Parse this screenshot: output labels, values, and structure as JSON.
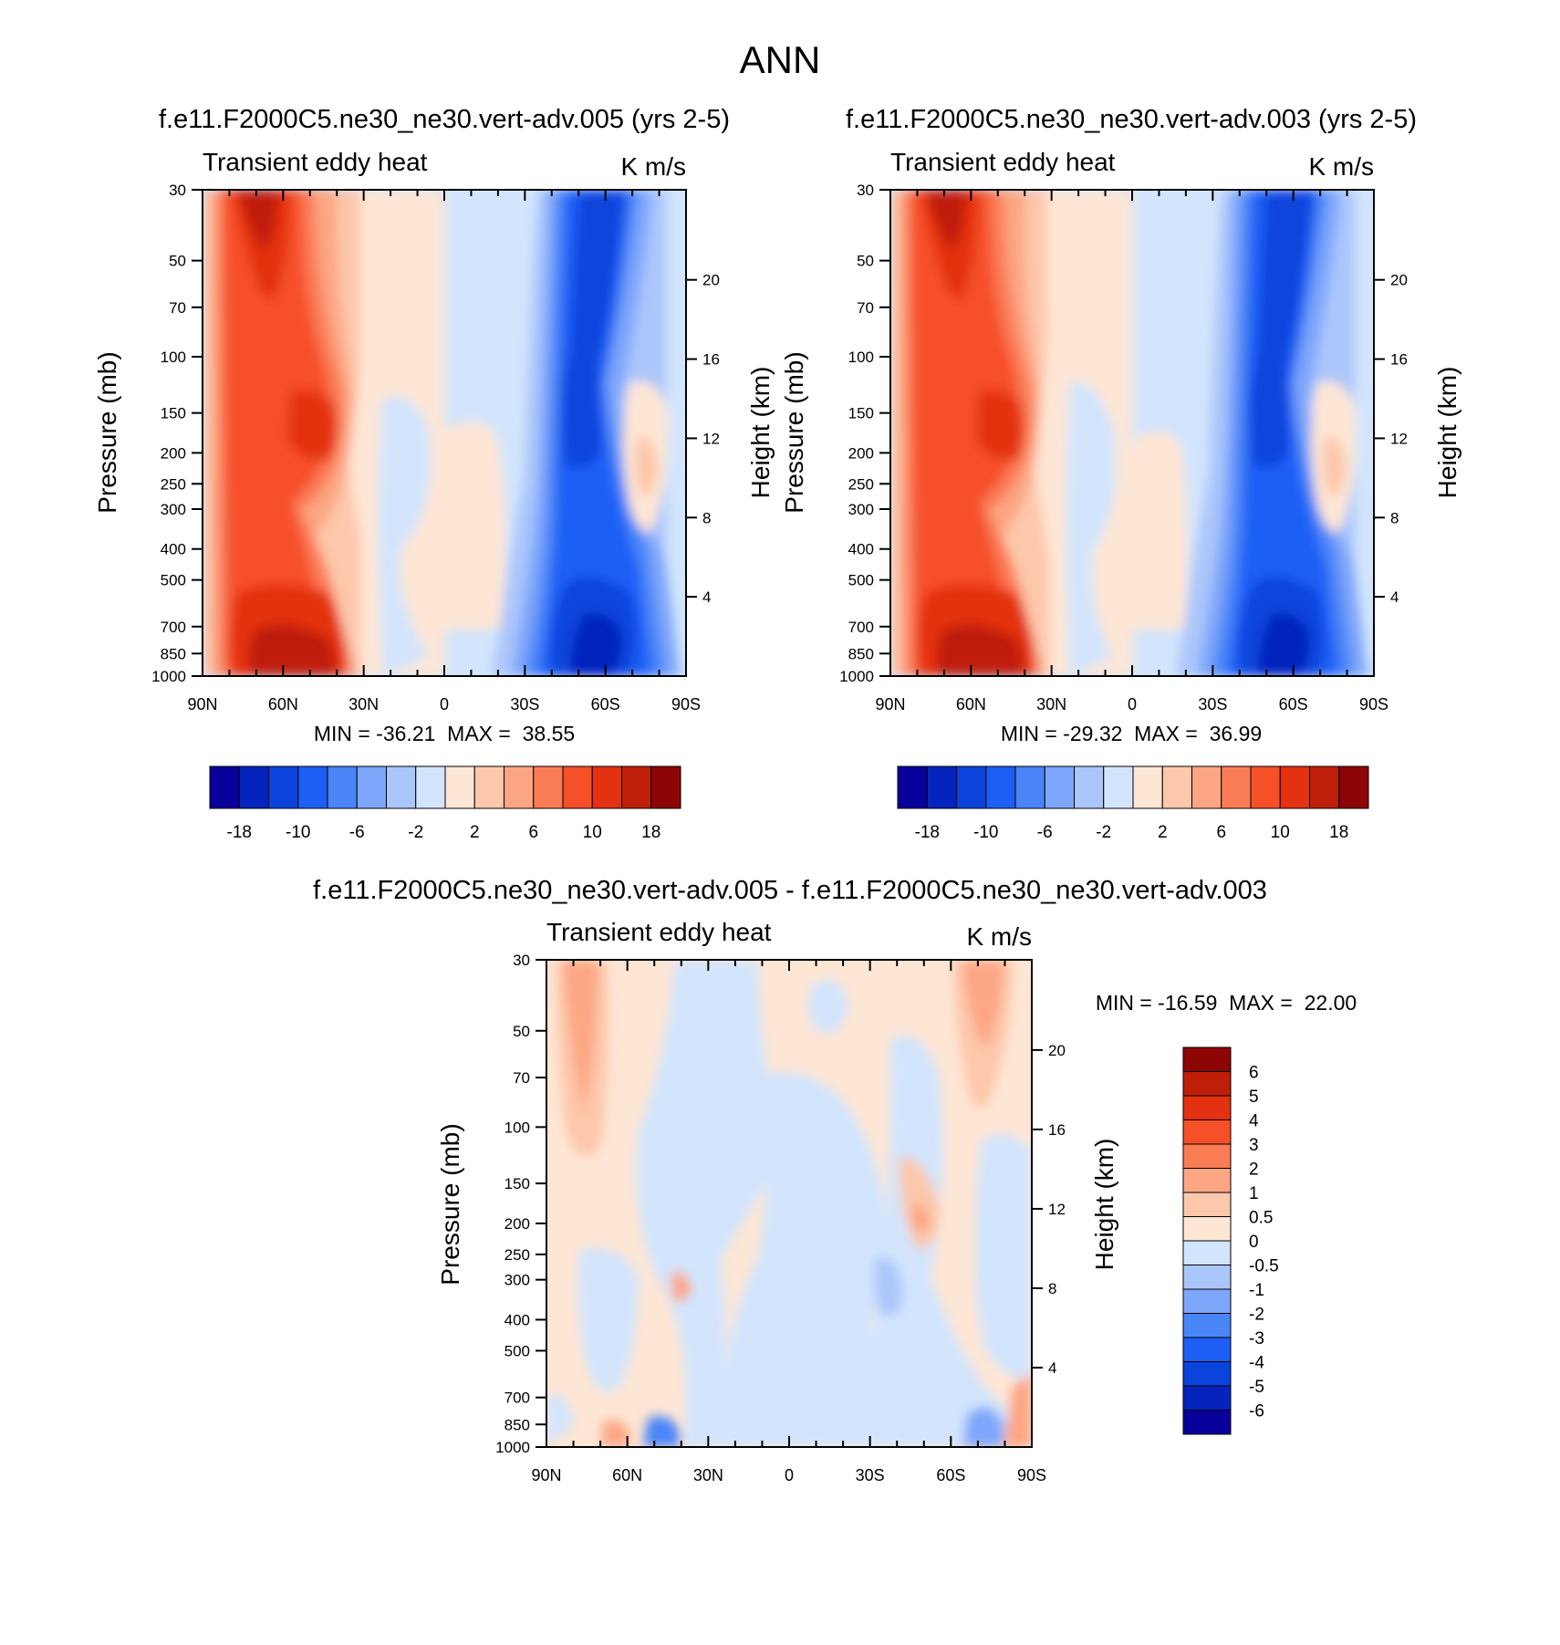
{
  "figure": {
    "title": "ANN"
  },
  "colors": {
    "levels20": [
      "#08009b",
      "#0524bd",
      "#0a44dd",
      "#1e5ef5",
      "#4a85f8",
      "#7ea6fa",
      "#abc6fb",
      "#d2e5fd",
      "#fee6d5",
      "#fdc8ab",
      "#fca683",
      "#fa7c55",
      "#f65029",
      "#e4310f",
      "#bf1f08",
      "#8d0505"
    ],
    "levels_diff": [
      "#08009b",
      "#0524bd",
      "#0a44dd",
      "#1e5ef5",
      "#4a85f8",
      "#7ea6fa",
      "#abc6fb",
      "#d2e5fd",
      "#fee6d5",
      "#fdc8ab",
      "#fca683",
      "#fa7c55",
      "#f65029",
      "#e4310f",
      "#bf1f08",
      "#8d0505"
    ]
  },
  "panels": [
    {
      "title": "f.e11.F2000C5.ne30_ne30.vert-adv.005 (yrs 2-5)",
      "variable": "Transient eddy heat",
      "units": "K m/s",
      "stats": "MIN = -36.21  MAX =  38.55"
    },
    {
      "title": "f.e11.F2000C5.ne30_ne30.vert-adv.003 (yrs 2-5)",
      "variable": "Transient eddy heat",
      "units": "K m/s",
      "stats": "MIN = -29.32  MAX =  36.99"
    },
    {
      "title": "f.e11.F2000C5.ne30_ne30.vert-adv.005 - f.e11.F2000C5.ne30_ne30.vert-adv.003",
      "variable": "Transient eddy heat",
      "units": "K m/s",
      "stats": "MIN = -16.59  MAX =  22.00"
    }
  ],
  "chart_data": [
    {
      "type": "heatmap",
      "title": "f.e11.F2000C5.ne30_ne30.vert-adv.005 (yrs 2-5)",
      "subtitle_left": "Transient eddy heat",
      "subtitle_right": "K m/s",
      "xlabel": "",
      "ylabel": "Pressure (mb)",
      "ylabel_right": "Height (km)",
      "x_ticks": [
        "90N",
        "60N",
        "30N",
        "0",
        "30S",
        "60S",
        "90S"
      ],
      "y_ticks": [
        "30",
        "50",
        "70",
        "100",
        "150",
        "200",
        "250",
        "300",
        "400",
        "500",
        "700",
        "850",
        "1000"
      ],
      "y_scale": "log",
      "ylim": [
        1000,
        30
      ],
      "y_right_ticks": [
        "4",
        "8",
        "12",
        "16",
        "20"
      ],
      "colorbar_levels": [
        -18,
        -14,
        -10,
        -8,
        -6,
        -4,
        -2,
        -1,
        1,
        2,
        4,
        6,
        8,
        10,
        14,
        18
      ],
      "colorbar_labels": [
        "-18",
        "-10",
        "-6",
        "-2",
        "2",
        "6",
        "10",
        "18"
      ],
      "min": -36.21,
      "max": 38.55
    },
    {
      "type": "heatmap",
      "title": "f.e11.F2000C5.ne30_ne30.vert-adv.003 (yrs 2-5)",
      "subtitle_left": "Transient eddy heat",
      "subtitle_right": "K m/s",
      "xlabel": "",
      "ylabel": "Pressure (mb)",
      "ylabel_right": "Height (km)",
      "x_ticks": [
        "90N",
        "60N",
        "30N",
        "0",
        "30S",
        "60S",
        "90S"
      ],
      "y_ticks": [
        "30",
        "50",
        "70",
        "100",
        "150",
        "200",
        "250",
        "300",
        "400",
        "500",
        "700",
        "850",
        "1000"
      ],
      "y_scale": "log",
      "ylim": [
        1000,
        30
      ],
      "y_right_ticks": [
        "4",
        "8",
        "12",
        "16",
        "20"
      ],
      "colorbar_labels": [
        "-18",
        "-10",
        "-6",
        "-2",
        "2",
        "6",
        "10",
        "18"
      ],
      "min": -29.32,
      "max": 36.99
    },
    {
      "type": "heatmap",
      "title": "f.e11.F2000C5.ne30_ne30.vert-adv.005 - f.e11.F2000C5.ne30_ne30.vert-adv.003",
      "subtitle_left": "Transient eddy heat",
      "subtitle_right": "K m/s",
      "xlabel": "",
      "ylabel": "Pressure (mb)",
      "ylabel_right": "Height (km)",
      "x_ticks": [
        "90N",
        "60N",
        "30N",
        "0",
        "30S",
        "60S",
        "90S"
      ],
      "y_ticks": [
        "30",
        "50",
        "70",
        "100",
        "150",
        "200",
        "250",
        "300",
        "400",
        "500",
        "700",
        "850",
        "1000"
      ],
      "y_scale": "log",
      "ylim": [
        1000,
        30
      ],
      "y_right_ticks": [
        "4",
        "8",
        "12",
        "16",
        "20"
      ],
      "colorbar_labels": [
        "6",
        "5",
        "4",
        "3",
        "2",
        "1",
        "0.5",
        "0",
        "-0.5",
        "-1",
        "-2",
        "-3",
        "-4",
        "-5",
        "-6"
      ],
      "min": -16.59,
      "max": 22.0
    }
  ]
}
